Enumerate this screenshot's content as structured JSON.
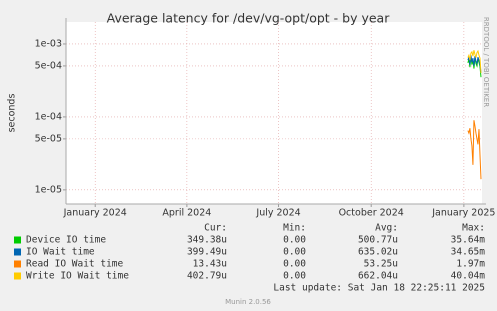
{
  "chart_data": {
    "type": "line",
    "title": "Average latency for /dev/vg-opt/opt - by year",
    "y_label": "seconds",
    "log_scale": true,
    "grid": true,
    "x": [
      "2025-01-05",
      "2025-01-06",
      "2025-01-07",
      "2025-01-08",
      "2025-01-09",
      "2025-01-10",
      "2025-01-11",
      "2025-01-12",
      "2025-01-13",
      "2025-01-14",
      "2025-01-15",
      "2025-01-16",
      "2025-01-17",
      "2025-01-18"
    ],
    "xlim": [
      "2023-12-03",
      "2025-01-19"
    ],
    "xticks": [
      {
        "value": "2024-01-01",
        "label": "January 2024"
      },
      {
        "value": "2024-04-01",
        "label": "April 2024"
      },
      {
        "value": "2024-07-01",
        "label": "July 2024"
      },
      {
        "value": "2024-10-01",
        "label": "October 2024"
      },
      {
        "value": "2025-01-01",
        "label": "January 2025"
      }
    ],
    "ylim": [
      6.4e-06,
      0.002
    ],
    "yticks": [
      {
        "value": 0.001,
        "label": "1e-03"
      },
      {
        "value": 0.0005,
        "label": "5e-04"
      },
      {
        "value": 0.0001,
        "label": "1e-04"
      },
      {
        "value": 5e-05,
        "label": "5e-05"
      },
      {
        "value": 1e-05,
        "label": "1e-05"
      }
    ],
    "series": [
      {
        "name": "Device IO time",
        "color": "#00cc00",
        "values": [
          0.00055,
          0.00062,
          0.00048,
          0.00068,
          0.00052,
          0.0006,
          0.00046,
          0.00065,
          0.00054,
          0.0005,
          0.00063,
          0.00056,
          0.00049,
          0.00035
        ]
      },
      {
        "name": "IO Wait time",
        "color": "#0066b3",
        "values": [
          0.0006,
          0.00066,
          0.00052,
          0.0007,
          0.00056,
          0.00064,
          0.0005,
          0.00068,
          0.00058,
          0.00054,
          0.00066,
          0.0006,
          0.00053,
          0.0004
        ]
      },
      {
        "name": "Read IO Wait time",
        "color": "#ff8000",
        "values": [
          6.5e-05,
          6e-05,
          7e-05,
          5e-05,
          4e-05,
          2.2e-05,
          9e-05,
          7.5e-05,
          6e-05,
          5e-05,
          4.2e-05,
          6.8e-05,
          3e-05,
          1.4e-05
        ]
      },
      {
        "name": "Write IO Wait time",
        "color": "#ffcc00",
        "values": [
          0.00065,
          0.0007,
          0.0006,
          0.00075,
          0.00078,
          0.00068,
          0.00082,
          0.00072,
          0.00065,
          0.00076,
          0.0008,
          0.0007,
          0.00064,
          0.0004
        ]
      }
    ],
    "legend_headers": [
      "Cur:",
      "Min:",
      "Avg:",
      "Max:"
    ],
    "legend_stats": [
      [
        "349.38u",
        "0.00",
        "500.77u",
        "35.64m"
      ],
      [
        "399.49u",
        "0.00",
        "635.02u",
        "34.65m"
      ],
      [
        "13.43u",
        "0.00",
        "53.25u",
        "1.97m"
      ],
      [
        "402.79u",
        "0.00",
        "662.04u",
        "40.04m"
      ]
    ],
    "last_update": "Last update: Sat Jan 18 22:25:11 2025",
    "watermark": "RRDTOOL / TOBI OETIKER",
    "footer": "Munin 2.0.56"
  }
}
